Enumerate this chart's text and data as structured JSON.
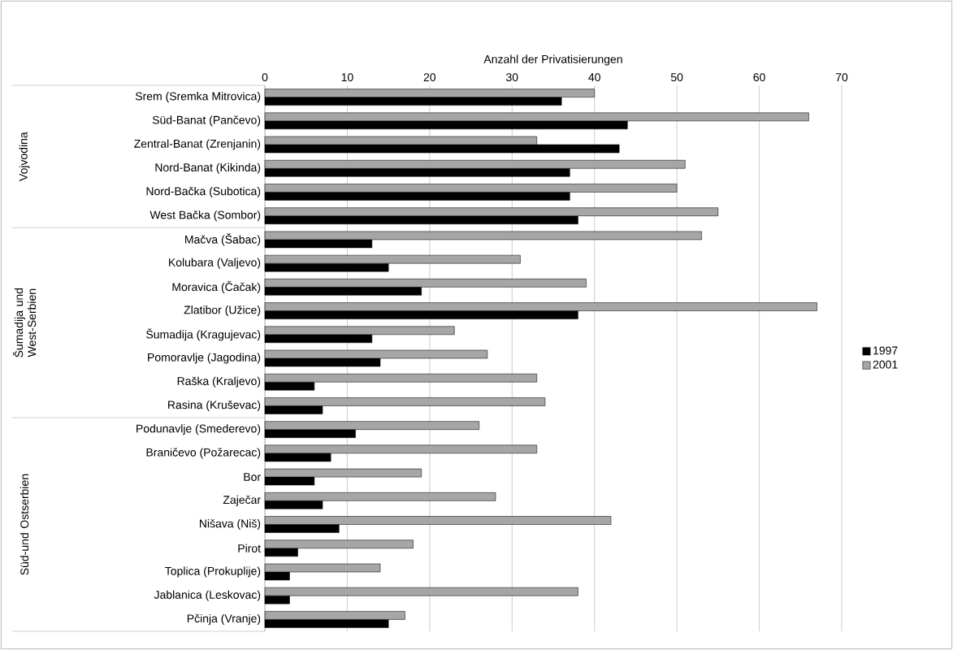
{
  "chart_data": {
    "type": "bar",
    "orientation": "horizontal",
    "xlabel": "Anzahl der Privatisierungen",
    "categories": [
      "Srem (Sremka Mitrovica)",
      "Süd-Banat (Pančevo)",
      "Zentral-Banat (Zrenjanin)",
      "Nord-Banat (Kikinda)",
      "Nord-Bačka (Subotica)",
      "West Bačka (Sombor)",
      "Mačva (Šabac)",
      "Kolubara (Valjevo)",
      "Moravica  (Čačak)",
      "Zlatibor (Užice)",
      "Šumadija (Kragujevac)",
      "Pomoravlje (Jagodina)",
      "Raška (Kraljevo)",
      "Rasina (Kruševac)",
      "Podunavlje (Smederevo)",
      "Braničevo (Požarecac)",
      "Bor",
      "Zaječar",
      "Nišava (Niš)",
      "Pirot",
      "Toplica (Prokuplije)",
      "Jablanica (Leskovac)",
      "Pčinja (Vranje)"
    ],
    "series": [
      {
        "name": "1997",
        "color": "#000000",
        "values": [
          36,
          44,
          43,
          37,
          37,
          38,
          13,
          15,
          19,
          38,
          13,
          14,
          6,
          7,
          11,
          8,
          6,
          7,
          9,
          4,
          3,
          3,
          15
        ]
      },
      {
        "name": "2001",
        "color": "#a6a6a6",
        "values": [
          40,
          66,
          33,
          51,
          50,
          55,
          53,
          31,
          39,
          67,
          23,
          27,
          33,
          34,
          26,
          33,
          19,
          28,
          42,
          18,
          14,
          38,
          17
        ]
      }
    ],
    "xlim": [
      0,
      70
    ],
    "xticks": [
      0,
      10,
      20,
      30,
      40,
      50,
      60,
      70
    ],
    "grid": "x",
    "legend": "right",
    "annotations": [
      "Vojvodina",
      "Šumadija und West-Serbien",
      "Süd-und Ostserbien"
    ]
  }
}
